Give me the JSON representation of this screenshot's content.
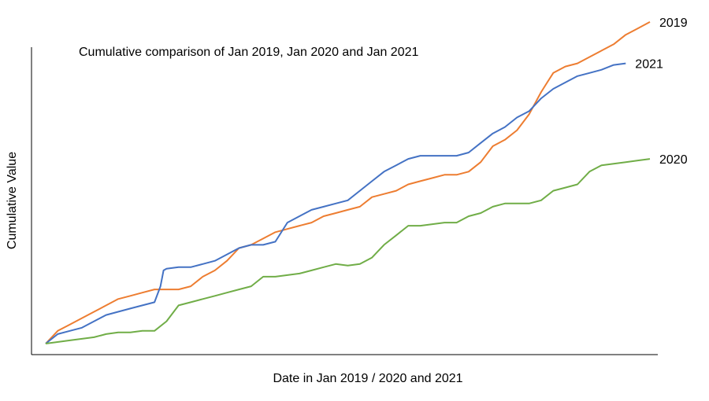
{
  "chart_data": {
    "type": "line",
    "title": "Cumulative comparison of Jan 2019, Jan 2020 and Jan 2021",
    "xlabel": "Date in Jan 2019 / 2020 and 2021",
    "ylabel": "Cumulative Value",
    "xlim": [
      0,
      100
    ],
    "ylim": [
      0,
      100
    ],
    "grid": false,
    "legend": "line-end labels (right)",
    "x_ticks_visible": false,
    "y_ticks_visible": false,
    "series": [
      {
        "name": "2019",
        "color": "#ED7D31",
        "points": [
          [
            0,
            0
          ],
          [
            2,
            4
          ],
          [
            4,
            6
          ],
          [
            6,
            8
          ],
          [
            8,
            10
          ],
          [
            10,
            12
          ],
          [
            12,
            14
          ],
          [
            14,
            15
          ],
          [
            16,
            16
          ],
          [
            18,
            17
          ],
          [
            20,
            17
          ],
          [
            22,
            17
          ],
          [
            24,
            18
          ],
          [
            26,
            21
          ],
          [
            28,
            23
          ],
          [
            30,
            26
          ],
          [
            32,
            30
          ],
          [
            34,
            31
          ],
          [
            36,
            33
          ],
          [
            38,
            35
          ],
          [
            40,
            36
          ],
          [
            42,
            37
          ],
          [
            44,
            38
          ],
          [
            46,
            40
          ],
          [
            48,
            41
          ],
          [
            50,
            42
          ],
          [
            52,
            43
          ],
          [
            54,
            46
          ],
          [
            56,
            47
          ],
          [
            58,
            48
          ],
          [
            60,
            50
          ],
          [
            62,
            51
          ],
          [
            64,
            52
          ],
          [
            66,
            53
          ],
          [
            68,
            53
          ],
          [
            70,
            54
          ],
          [
            72,
            57
          ],
          [
            74,
            62
          ],
          [
            76,
            64
          ],
          [
            78,
            67
          ],
          [
            80,
            72
          ],
          [
            82,
            79
          ],
          [
            83,
            82
          ],
          [
            84,
            85
          ],
          [
            86,
            87
          ],
          [
            88,
            88
          ],
          [
            90,
            90
          ],
          [
            92,
            92
          ],
          [
            94,
            94
          ],
          [
            96,
            97
          ],
          [
            98,
            99
          ],
          [
            100,
            101
          ]
        ]
      },
      {
        "name": "2021",
        "color": "#4472C4",
        "points": [
          [
            0,
            0
          ],
          [
            2,
            3
          ],
          [
            4,
            4
          ],
          [
            6,
            5
          ],
          [
            8,
            7
          ],
          [
            10,
            9
          ],
          [
            12,
            10
          ],
          [
            14,
            11
          ],
          [
            16,
            12
          ],
          [
            18,
            13
          ],
          [
            19,
            18
          ],
          [
            19.5,
            23
          ],
          [
            20,
            23.5
          ],
          [
            22,
            24
          ],
          [
            24,
            24
          ],
          [
            26,
            25
          ],
          [
            28,
            26
          ],
          [
            30,
            28
          ],
          [
            32,
            30
          ],
          [
            34,
            31
          ],
          [
            36,
            31
          ],
          [
            38,
            32
          ],
          [
            40,
            38
          ],
          [
            42,
            40
          ],
          [
            44,
            42
          ],
          [
            46,
            43
          ],
          [
            48,
            44
          ],
          [
            50,
            45
          ],
          [
            52,
            48
          ],
          [
            54,
            51
          ],
          [
            56,
            54
          ],
          [
            58,
            56
          ],
          [
            60,
            58
          ],
          [
            62,
            59
          ],
          [
            64,
            59
          ],
          [
            66,
            59
          ],
          [
            68,
            59
          ],
          [
            70,
            60
          ],
          [
            72,
            63
          ],
          [
            74,
            66
          ],
          [
            76,
            68
          ],
          [
            78,
            71
          ],
          [
            80,
            73
          ],
          [
            82,
            77
          ],
          [
            84,
            80
          ],
          [
            86,
            82
          ],
          [
            88,
            84
          ],
          [
            90,
            85
          ],
          [
            92,
            86
          ],
          [
            94,
            87.5
          ],
          [
            96,
            88
          ]
        ]
      },
      {
        "name": "2020",
        "color": "#70AD47",
        "points": [
          [
            0,
            0
          ],
          [
            4,
            1
          ],
          [
            8,
            2
          ],
          [
            10,
            3
          ],
          [
            12,
            3.5
          ],
          [
            14,
            3.5
          ],
          [
            16,
            4
          ],
          [
            18,
            4
          ],
          [
            20,
            7
          ],
          [
            22,
            12
          ],
          [
            24,
            13
          ],
          [
            26,
            14
          ],
          [
            28,
            15
          ],
          [
            30,
            16
          ],
          [
            32,
            17
          ],
          [
            34,
            18
          ],
          [
            36,
            21
          ],
          [
            38,
            21
          ],
          [
            40,
            21.5
          ],
          [
            42,
            22
          ],
          [
            44,
            23
          ],
          [
            46,
            24
          ],
          [
            48,
            25
          ],
          [
            50,
            24.5
          ],
          [
            52,
            25
          ],
          [
            54,
            27
          ],
          [
            56,
            31
          ],
          [
            58,
            34
          ],
          [
            60,
            37
          ],
          [
            62,
            37
          ],
          [
            64,
            37.5
          ],
          [
            66,
            38
          ],
          [
            68,
            38
          ],
          [
            70,
            40
          ],
          [
            72,
            41
          ],
          [
            74,
            43
          ],
          [
            76,
            44
          ],
          [
            78,
            44
          ],
          [
            80,
            44
          ],
          [
            82,
            45
          ],
          [
            84,
            48
          ],
          [
            86,
            49
          ],
          [
            88,
            50
          ],
          [
            90,
            54
          ],
          [
            92,
            56
          ],
          [
            94,
            56.5
          ],
          [
            96,
            57
          ],
          [
            98,
            57.5
          ],
          [
            100,
            58
          ]
        ]
      }
    ]
  }
}
